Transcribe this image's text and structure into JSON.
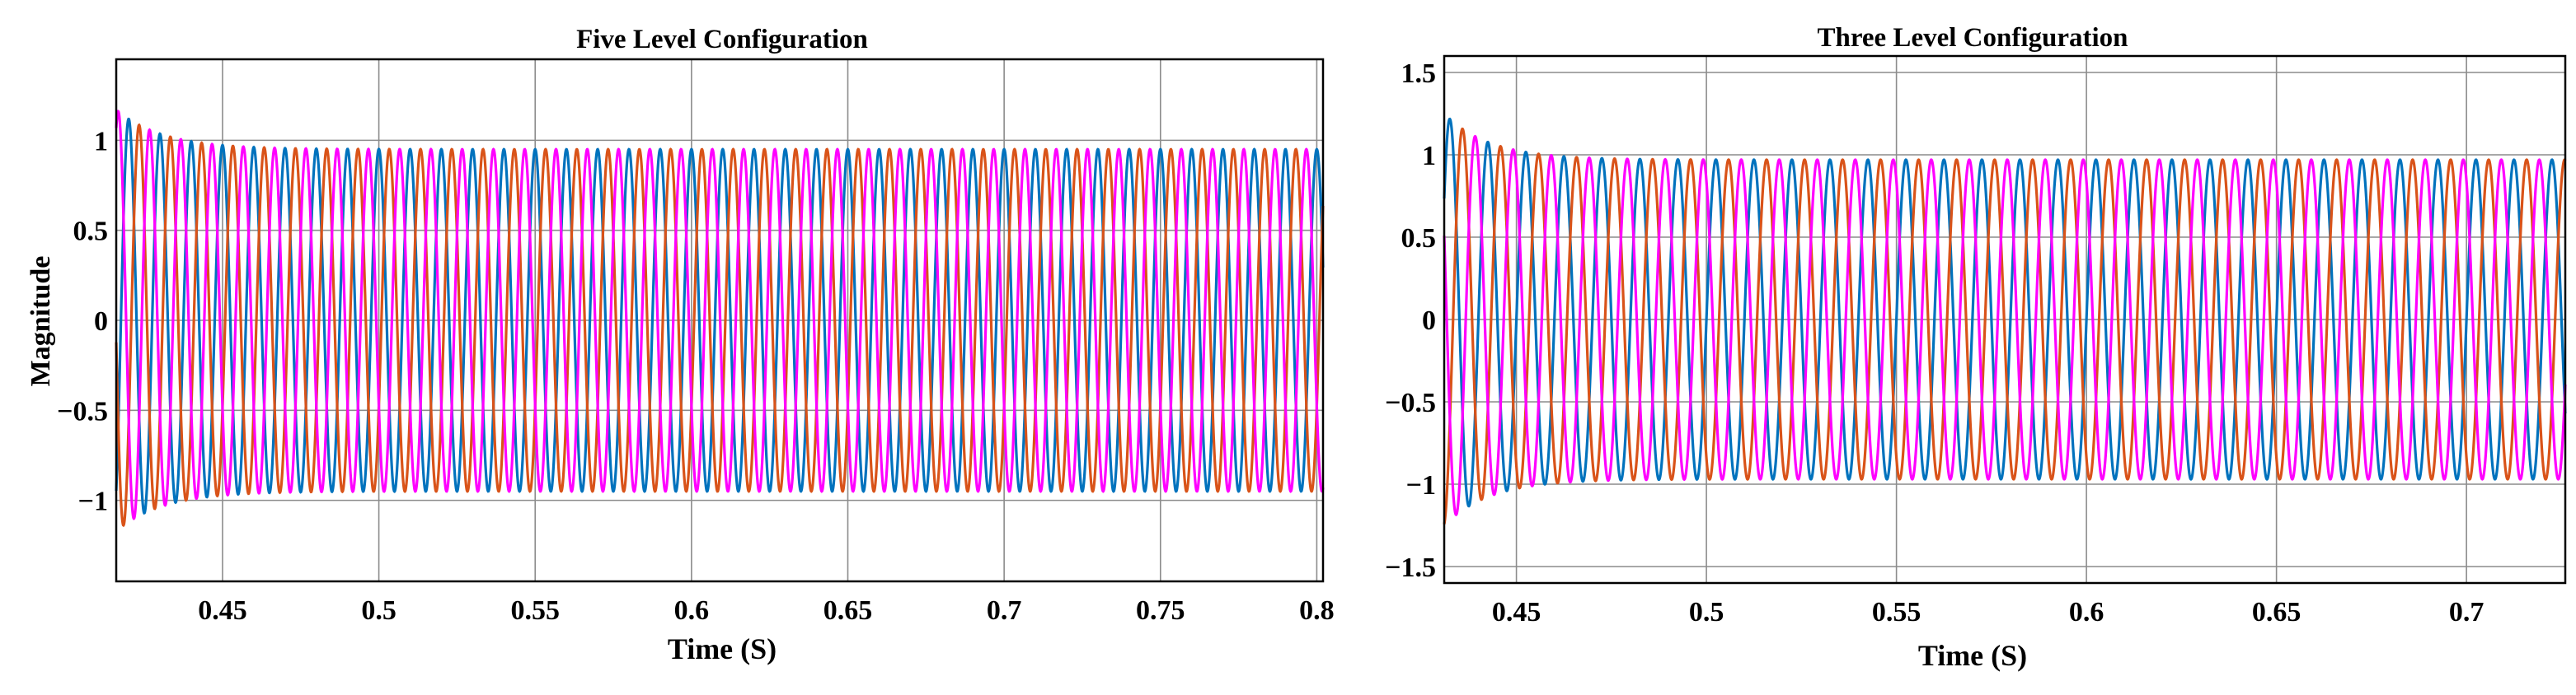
{
  "chart_data": [
    {
      "type": "line",
      "title": "Five Level Configuration",
      "xlabel": "Time (S)",
      "ylabel": "Magnitude",
      "xlim": [
        0.416,
        0.802
      ],
      "ylim": [
        -1.45,
        1.45
      ],
      "xticks": [
        0.45,
        0.5,
        0.55,
        0.6,
        0.65,
        0.7,
        0.75,
        0.8
      ],
      "xtick_labels": [
        "0.45",
        "0.5",
        "0.55",
        "0.6",
        "0.65",
        "0.7",
        "0.75",
        "0.8"
      ],
      "yticks": [
        -1,
        -0.5,
        0,
        0.5,
        1
      ],
      "ytick_labels": [
        "−1",
        "−0.5",
        "0",
        "0.5",
        "1"
      ],
      "grid": true,
      "legend": "none",
      "frequency_hz": 100,
      "steady_amplitude": 0.95,
      "series": [
        {
          "color": "#0072BD",
          "phase_deg": 90,
          "transient_amplitude": 0.22,
          "decay_s": 0.015
        },
        {
          "color": "#D95319",
          "phase_deg": -30,
          "transient_amplitude": 0.22,
          "decay_s": 0.015
        },
        {
          "color": "#FF00FF",
          "phase_deg": 210,
          "transient_amplitude": 0.22,
          "decay_s": 0.015
        }
      ]
    },
    {
      "type": "line",
      "title": "Three Level Configuration",
      "xlabel": "Time (S)",
      "ylabel": "",
      "xlim": [
        0.431,
        0.726
      ],
      "ylim": [
        -1.6,
        1.6
      ],
      "xticks": [
        0.45,
        0.5,
        0.55,
        0.6,
        0.65,
        0.7
      ],
      "xtick_labels": [
        "0.45",
        "0.5",
        "0.55",
        "0.6",
        "0.65",
        "0.7"
      ],
      "yticks": [
        -1.5,
        -1,
        -0.5,
        0,
        0.5,
        1,
        1.5
      ],
      "ytick_labels": [
        "−1.5",
        "−1",
        "−0.5",
        "0",
        "0.5",
        "1",
        "1.5"
      ],
      "grid": true,
      "legend": "none",
      "frequency_hz": 100,
      "steady_amplitude": 0.97,
      "series": [
        {
          "color": "#0072BD",
          "phase_deg": 0,
          "transient_amplitude": 0.28,
          "decay_s": 0.012
        },
        {
          "color": "#D95319",
          "phase_deg": 240,
          "transient_amplitude": 0.28,
          "decay_s": 0.012
        },
        {
          "color": "#FF00FF",
          "phase_deg": 120,
          "transient_amplitude": 0.28,
          "decay_s": 0.012
        }
      ]
    }
  ]
}
